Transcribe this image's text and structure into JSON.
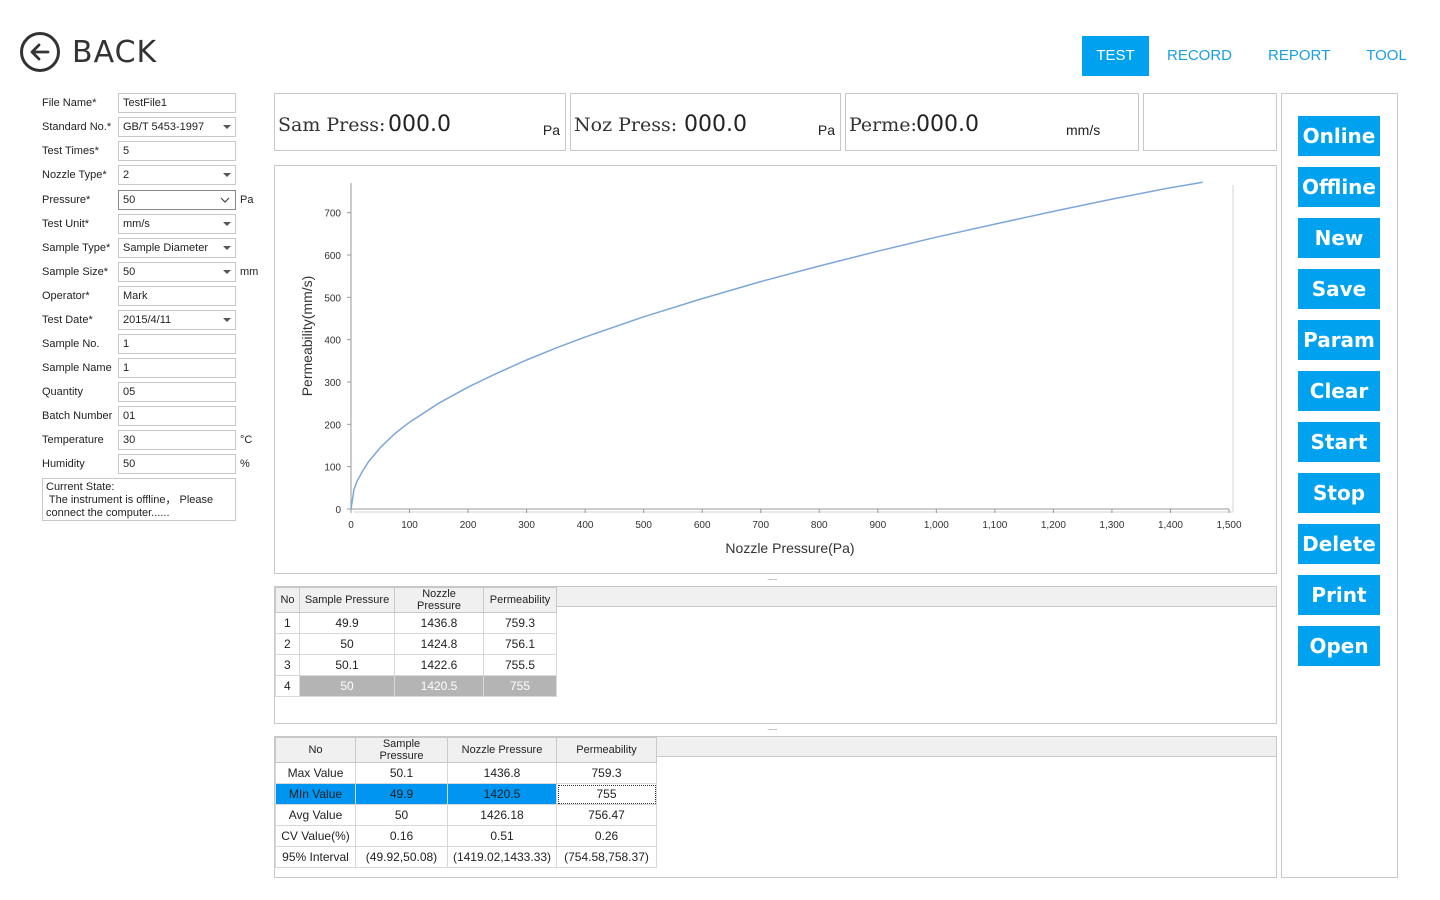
{
  "header": {
    "back_label": "BACK",
    "tabs": [
      {
        "label": "TEST",
        "active": true
      },
      {
        "label": "RECORD",
        "active": false
      },
      {
        "label": "REPORT",
        "active": false
      },
      {
        "label": "TOOL",
        "active": false
      }
    ]
  },
  "form": {
    "file_name": {
      "label": "File Name*",
      "value": "TestFile1"
    },
    "standard_no": {
      "label": "Standard No.*",
      "value": "GB/T 5453-1997"
    },
    "test_times": {
      "label": "Test Times*",
      "value": "5"
    },
    "nozzle_type": {
      "label": "Nozzle Type*",
      "value": "2"
    },
    "pressure": {
      "label": "Pressure*",
      "value": "50",
      "unit": "Pa"
    },
    "test_unit": {
      "label": "Test Unit*",
      "value": "mm/s"
    },
    "sample_type": {
      "label": "Sample Type*",
      "value": "Sample Diameter"
    },
    "sample_size": {
      "label": "Sample Size*",
      "value": "50",
      "unit": "mm"
    },
    "operator": {
      "label": "Operator*",
      "value": "Mark"
    },
    "test_date": {
      "label": "Test Date*",
      "value": "2015/4/11"
    },
    "sample_no": {
      "label": "Sample No.",
      "value": "1"
    },
    "sample_name": {
      "label": "Sample Name",
      "value": "1"
    },
    "quantity": {
      "label": "Quantity",
      "value": "05"
    },
    "batch_number": {
      "label": "Batch Number",
      "value": "01"
    },
    "temperature": {
      "label": "Temperature",
      "value": "30",
      "unit": "°C"
    },
    "humidity": {
      "label": "Humidity",
      "value": "50",
      "unit": "%"
    },
    "state_line1": "Current State:",
    "state_line2": " The instrument is offline， Please",
    "state_line3": "connect the computer......"
  },
  "readouts": {
    "sam_label": "Sam Press:",
    "sam_value": "000.0",
    "sam_unit": "Pa",
    "noz_label": "Noz Press:",
    "noz_value": "000.0",
    "noz_unit": "Pa",
    "perme_label": "Perme:",
    "perme_value": "000.0",
    "perme_unit": "mm/s"
  },
  "chart_data": {
    "type": "line",
    "xlabel": "Nozzle Pressure(Pa)",
    "ylabel": "Permeability(mm/s)",
    "xlim": [
      0,
      1500
    ],
    "ylim": [
      0,
      770
    ],
    "x_ticks": [
      "0",
      "100",
      "200",
      "300",
      "400",
      "500",
      "600",
      "700",
      "800",
      "900",
      "1,000",
      "1,100",
      "1,200",
      "1,300",
      "1,400",
      "1,500"
    ],
    "y_ticks": [
      "0",
      "100",
      "200",
      "300",
      "400",
      "500",
      "600",
      "700"
    ],
    "grid": false,
    "color": "#7da7d9",
    "series": [
      {
        "x": [
          0,
          5,
          10,
          20,
          30,
          50,
          75,
          100,
          150,
          200,
          250,
          300,
          350,
          400,
          500,
          600,
          700,
          800,
          900,
          1000,
          1100,
          1200,
          1300,
          1400,
          1455
        ],
        "y": [
          0,
          45,
          65,
          90,
          112,
          145,
          178,
          205,
          250,
          288,
          321,
          352,
          380,
          406,
          454,
          497,
          537,
          574,
          609,
          642,
          673,
          703,
          732,
          759,
          772
        ]
      }
    ]
  },
  "results_table": {
    "headers": [
      "No",
      "Sample Pressure",
      "Nozzle Pressure",
      "Permeability"
    ],
    "rows": [
      [
        "1",
        "49.9",
        "1436.8",
        "759.3"
      ],
      [
        "2",
        "50",
        "1424.8",
        "756.1"
      ],
      [
        "3",
        "50.1",
        "1422.6",
        "755.5"
      ],
      [
        "4",
        "50",
        "1420.5",
        "755"
      ]
    ]
  },
  "stats_table": {
    "headers": [
      "No",
      "Sample Pressure",
      "Nozzle Pressure",
      "Permeability"
    ],
    "rows": [
      [
        "Max Value",
        "50.1",
        "1436.8",
        "759.3"
      ],
      [
        "MIn Value",
        "49.9",
        "1420.5",
        "755"
      ],
      [
        "Avg Value",
        "50",
        "1426.18",
        "756.47"
      ],
      [
        "CV Value(%)",
        "0.16",
        "0.51",
        "0.26"
      ],
      [
        "95% Interval",
        "(49.92,50.08)",
        "(1419.02,1433.33)",
        "(754.58,758.37)"
      ]
    ]
  },
  "actions": {
    "online": "Online",
    "offline": "Offline",
    "new": "New",
    "save": "Save",
    "param": "Param",
    "clear": "Clear",
    "start": "Start",
    "stop": "Stop",
    "delete": "Delete",
    "print": "Print",
    "open": "Open"
  },
  "colors": {
    "accent": "#00a2ef",
    "selection_blue": "#0095f0",
    "selection_gray": "#b4b4b4"
  }
}
